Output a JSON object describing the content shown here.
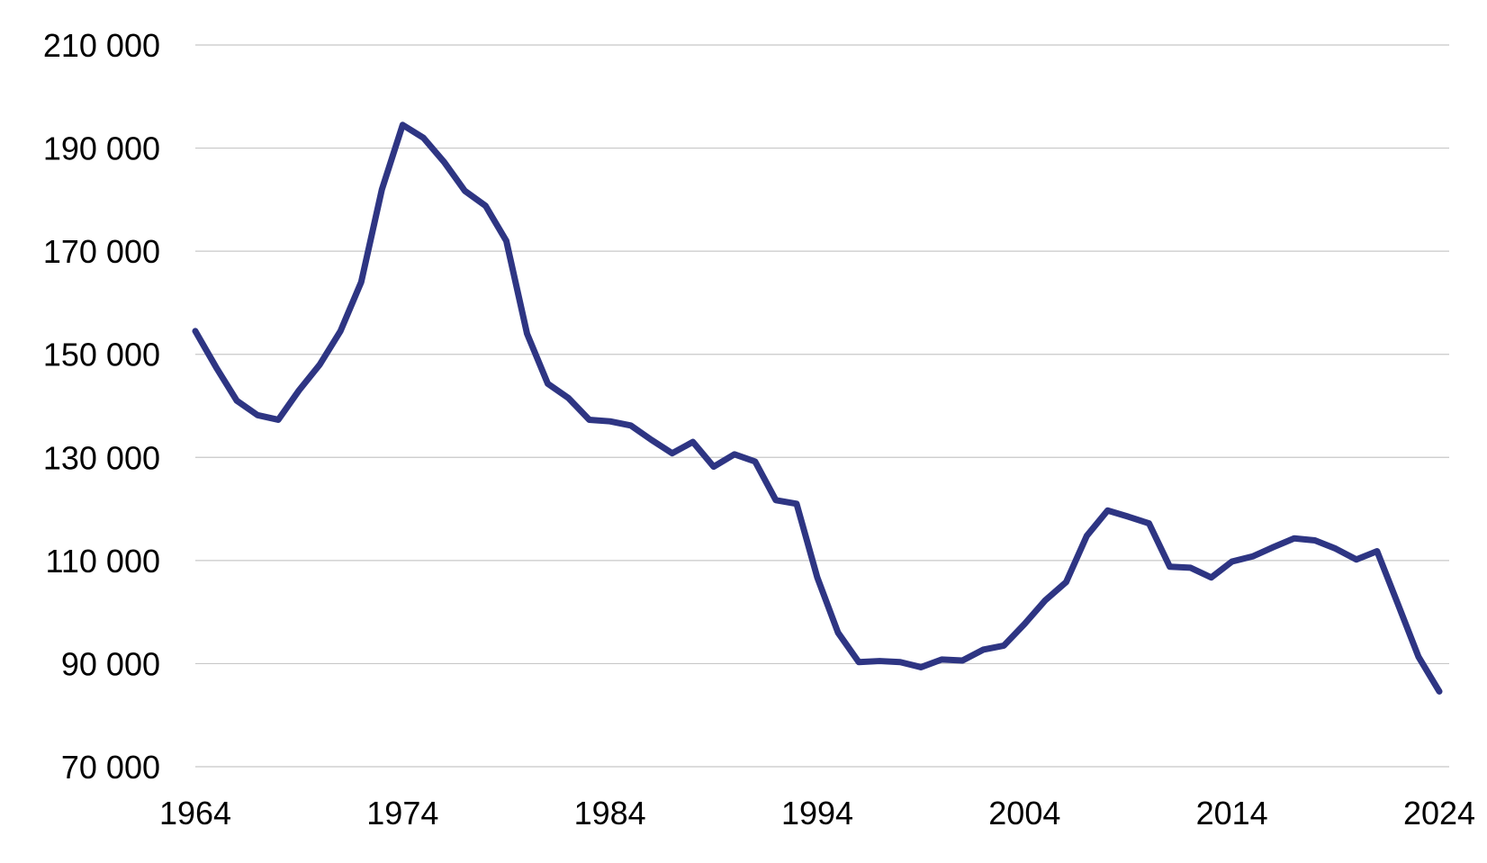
{
  "chart_data": {
    "type": "line",
    "title": "",
    "xlabel": "",
    "ylabel": "",
    "xlim": [
      1964,
      2024
    ],
    "ylim": [
      70000,
      210000
    ],
    "x_ticks": [
      1964,
      1974,
      1984,
      1994,
      2004,
      2014,
      2024
    ],
    "x_tick_labels": [
      "1964",
      "1974",
      "1984",
      "1994",
      "2004",
      "2014",
      "2024"
    ],
    "y_ticks": [
      70000,
      90000,
      110000,
      130000,
      150000,
      170000,
      190000,
      210000
    ],
    "y_tick_labels": [
      "70 000",
      "90 000",
      "110 000",
      "130 000",
      "150 000",
      "170 000",
      "190 000",
      "210 000"
    ],
    "grid": "horizontal",
    "legend": "none",
    "colors": {
      "line": "#2e3583",
      "grid": "#c8c8c8",
      "text": "#000000"
    },
    "x": [
      1964,
      1965,
      1966,
      1967,
      1968,
      1969,
      1970,
      1971,
      1972,
      1973,
      1974,
      1975,
      1976,
      1977,
      1978,
      1979,
      1980,
      1981,
      1982,
      1983,
      1984,
      1985,
      1986,
      1987,
      1988,
      1989,
      1990,
      1991,
      1992,
      1993,
      1994,
      1995,
      1996,
      1997,
      1998,
      1999,
      2000,
      2001,
      2002,
      2003,
      2004,
      2005,
      2006,
      2007,
      2008,
      2009,
      2010,
      2011,
      2012,
      2013,
      2014,
      2015,
      2016,
      2017,
      2018,
      2019,
      2020,
      2021,
      2022,
      2023,
      2024
    ],
    "series": [
      {
        "values": [
          154500,
          147500,
          141000,
          138200,
          137300,
          143000,
          148000,
          154500,
          164000,
          182000,
          194500,
          192000,
          187300,
          181700,
          178800,
          172000,
          154000,
          144300,
          141500,
          137300,
          137000,
          136200,
          133400,
          130800,
          133000,
          128200,
          130600,
          129200,
          121700,
          121000,
          106700,
          96000,
          90300,
          90500,
          90300,
          89300,
          90800,
          90600,
          92700,
          93500,
          97700,
          102300,
          105800,
          114800,
          119700,
          118500,
          117200,
          108800,
          108600,
          106700,
          109800,
          110800,
          112600,
          114300,
          113900,
          112300,
          110200,
          111800,
          101600,
          91300,
          84600
        ]
      }
    ]
  }
}
